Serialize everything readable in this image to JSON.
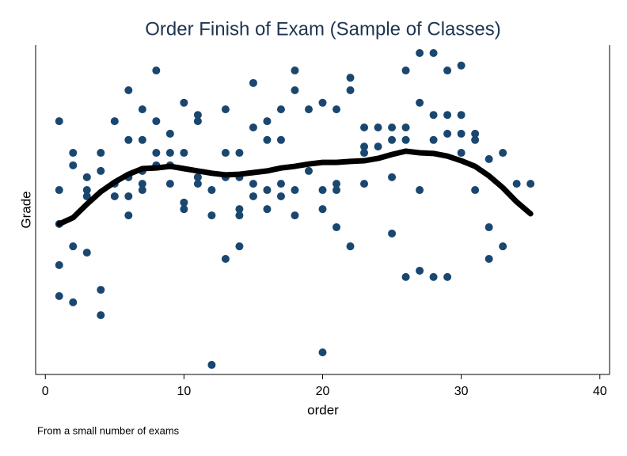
{
  "chart_data": {
    "type": "scatter",
    "title": "Order Finish of Exam (Sample of Classes)",
    "xlabel": "order",
    "ylabel": "Grade",
    "note": "From a small number of exams",
    "color": "#1a476f",
    "line_color": "#000000",
    "xlim": [
      -0.7,
      40.7
    ],
    "xticks": [
      0,
      10,
      20,
      30,
      40
    ],
    "ylim": [
      0,
      100
    ],
    "x": [
      1,
      1,
      1,
      1,
      1,
      2,
      2,
      2,
      2,
      3,
      3,
      3,
      3,
      4,
      4,
      4,
      4,
      5,
      5,
      5,
      6,
      6,
      6,
      6,
      6,
      7,
      7,
      7,
      7,
      7,
      8,
      8,
      8,
      8,
      9,
      9,
      9,
      9,
      10,
      10,
      10,
      10,
      11,
      11,
      11,
      11,
      12,
      12,
      12,
      13,
      13,
      13,
      13,
      14,
      14,
      14,
      14,
      14,
      15,
      15,
      15,
      15,
      16,
      16,
      16,
      16,
      17,
      17,
      17,
      17,
      18,
      18,
      18,
      18,
      19,
      19,
      20,
      20,
      20,
      20,
      21,
      21,
      21,
      21,
      22,
      22,
      22,
      23,
      23,
      23,
      23,
      24,
      24,
      25,
      25,
      25,
      25,
      26,
      26,
      26,
      26,
      27,
      27,
      27,
      27,
      28,
      28,
      28,
      28,
      29,
      29,
      29,
      29,
      30,
      30,
      30,
      30,
      31,
      31,
      31,
      32,
      32,
      32,
      33,
      33,
      34,
      35
    ],
    "values": [
      76.9,
      56.0,
      45.7,
      33.2,
      23.8,
      67.3,
      63.5,
      38.9,
      21.9,
      59.9,
      56.0,
      54.1,
      37.0,
      67.3,
      61.8,
      25.7,
      18.0,
      76.9,
      57.9,
      54.1,
      86.3,
      71.2,
      59.9,
      54.1,
      48.3,
      80.5,
      71.2,
      61.8,
      57.9,
      56.0,
      92.3,
      76.9,
      67.3,
      63.5,
      73.1,
      67.3,
      63.5,
      57.9,
      82.5,
      67.3,
      52.2,
      50.2,
      78.8,
      76.9,
      59.9,
      57.9,
      56.0,
      48.3,
      2.9,
      80.5,
      67.3,
      59.9,
      35.1,
      67.3,
      59.9,
      50.2,
      48.3,
      38.9,
      88.5,
      75.0,
      57.9,
      54.1,
      76.9,
      71.2,
      56.0,
      50.2,
      80.5,
      71.2,
      57.9,
      54.1,
      92.3,
      86.3,
      56.0,
      48.3,
      80.5,
      61.8,
      82.5,
      56.0,
      50.2,
      6.7,
      80.5,
      57.9,
      56.0,
      44.7,
      90.1,
      86.3,
      38.9,
      75.0,
      69.2,
      67.3,
      57.9,
      75.0,
      69.2,
      75.0,
      71.2,
      59.9,
      42.8,
      92.3,
      75.0,
      71.2,
      29.6,
      97.6,
      82.5,
      56.0,
      31.5,
      97.6,
      78.8,
      71.2,
      29.6,
      92.3,
      78.8,
      73.1,
      29.6,
      93.8,
      78.8,
      73.1,
      67.3,
      73.1,
      71.2,
      56.0,
      65.4,
      44.7,
      35.1,
      67.3,
      38.9,
      57.9,
      57.9
    ],
    "line_x": [
      1,
      2,
      3,
      4,
      5,
      6,
      7,
      8,
      9,
      10,
      11,
      12,
      13,
      14,
      15,
      16,
      17,
      18,
      19,
      20,
      21,
      22,
      23,
      24,
      25,
      26,
      27,
      28,
      29,
      30,
      31,
      32,
      33,
      34,
      35
    ],
    "line_values": [
      45.7,
      47.6,
      51.7,
      55.5,
      58.4,
      60.8,
      62.5,
      62.7,
      63.2,
      62.5,
      61.8,
      61.1,
      60.6,
      60.8,
      61.3,
      61.8,
      62.7,
      63.2,
      63.9,
      64.4,
      64.4,
      64.7,
      64.9,
      65.6,
      66.8,
      67.8,
      67.3,
      67.1,
      66.3,
      64.9,
      63.2,
      60.3,
      56.7,
      52.4,
      48.8
    ]
  }
}
